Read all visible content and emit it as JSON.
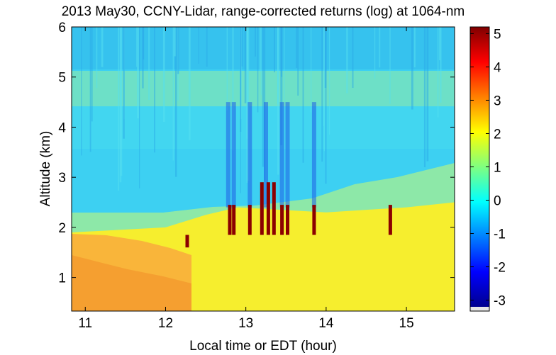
{
  "chart_data": {
    "type": "heatmap",
    "title": "2013 May30, CCNY-Lidar, range-corrected returns (log) at 1064-nm",
    "xlabel": "Local time or EDT (hour)",
    "ylabel": "Altitude (km)",
    "xlim": [
      10.83,
      15.6
    ],
    "ylim": [
      0.33,
      6.0
    ],
    "xticks": [
      11,
      12,
      13,
      14,
      15
    ],
    "yticks": [
      1,
      2,
      3,
      4,
      5,
      6
    ],
    "colorbar": {
      "range": [
        -3.2,
        5.2
      ],
      "ticks": [
        -3,
        -2,
        -1,
        0,
        1,
        2,
        3,
        4,
        5
      ],
      "colormap": "jet"
    },
    "features": {
      "boundary_layer_top_km": [
        {
          "time": 10.83,
          "km": 1.9
        },
        {
          "time": 12.0,
          "km": 2.0
        },
        {
          "time": 12.5,
          "km": 2.25
        },
        {
          "time": 12.9,
          "km": 2.4
        },
        {
          "time": 14.0,
          "km": 2.3
        },
        {
          "time": 15.0,
          "km": 2.4
        },
        {
          "time": 15.6,
          "km": 2.5
        }
      ],
      "elevated_aerosol_layer_km": [
        4.5,
        5.2
      ],
      "cloud_times_hours": [
        12.27,
        12.8,
        12.85,
        13.05,
        13.2,
        13.28,
        13.35,
        13.45,
        13.52,
        13.85,
        14.8
      ]
    }
  }
}
